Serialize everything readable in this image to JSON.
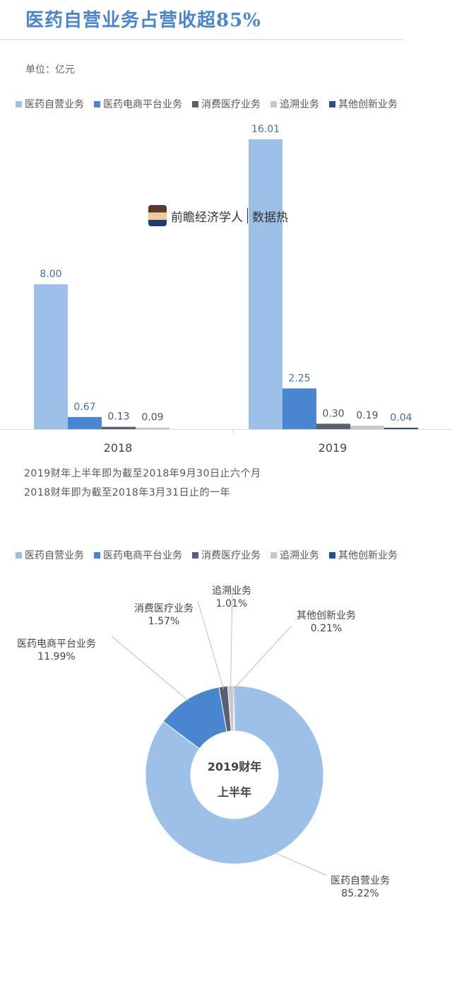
{
  "header": {
    "title": "医药自营业务占营收超85%",
    "unit": "单位：亿元"
  },
  "watermark": {
    "brand": "前瞻经济学人",
    "tag": "数据热"
  },
  "colors": {
    "自营": "#9dc0e8",
    "电商": "#4a86cf",
    "消费": "#5a6073",
    "追溯": "#c8c8c8",
    "其他": "#23508f"
  },
  "notes": [
    "2019财年上半年即为截至2018年9月30日止六个月",
    "2018财年即为截至2018年3月31日止的一年"
  ],
  "chart_data": [
    {
      "type": "bar",
      "title": "",
      "categories": [
        "2018",
        "2019"
      ],
      "series": [
        {
          "name": "医药自营业务",
          "values": [
            8.0,
            16.01
          ],
          "color": "#9dc0e8"
        },
        {
          "name": "医药电商平台业务",
          "values": [
            0.67,
            2.25
          ],
          "color": "#4a86cf"
        },
        {
          "name": "消费医疗业务",
          "values": [
            0.13,
            0.3
          ],
          "color": "#5a6073"
        },
        {
          "name": "追溯业务",
          "values": [
            0.09,
            0.19
          ],
          "color": "#c8c8c8"
        },
        {
          "name": "其他创新业务",
          "values": [
            null,
            0.04
          ],
          "color": "#23508f"
        }
      ],
      "ylim": [
        0,
        16.01
      ],
      "legend": "top",
      "grid": false
    },
    {
      "type": "pie",
      "center_label": [
        "2019财年",
        "上半年"
      ],
      "slices": [
        {
          "name": "医药自营业务",
          "value": 85.22,
          "label": "85.22%",
          "color": "#9dc0e8"
        },
        {
          "name": "医药电商平台业务",
          "value": 11.99,
          "label": "11.99%",
          "color": "#4a86cf"
        },
        {
          "name": "消费医疗业务",
          "value": 1.57,
          "label": "1.57%",
          "color": "#5a6073"
        },
        {
          "name": "追溯业务",
          "value": 1.01,
          "label": "1.01%",
          "color": "#c8c8c8"
        },
        {
          "name": "其他创新业务",
          "value": 0.21,
          "label": "0.21%",
          "color": "#23508f"
        }
      ],
      "legend": "top"
    }
  ]
}
